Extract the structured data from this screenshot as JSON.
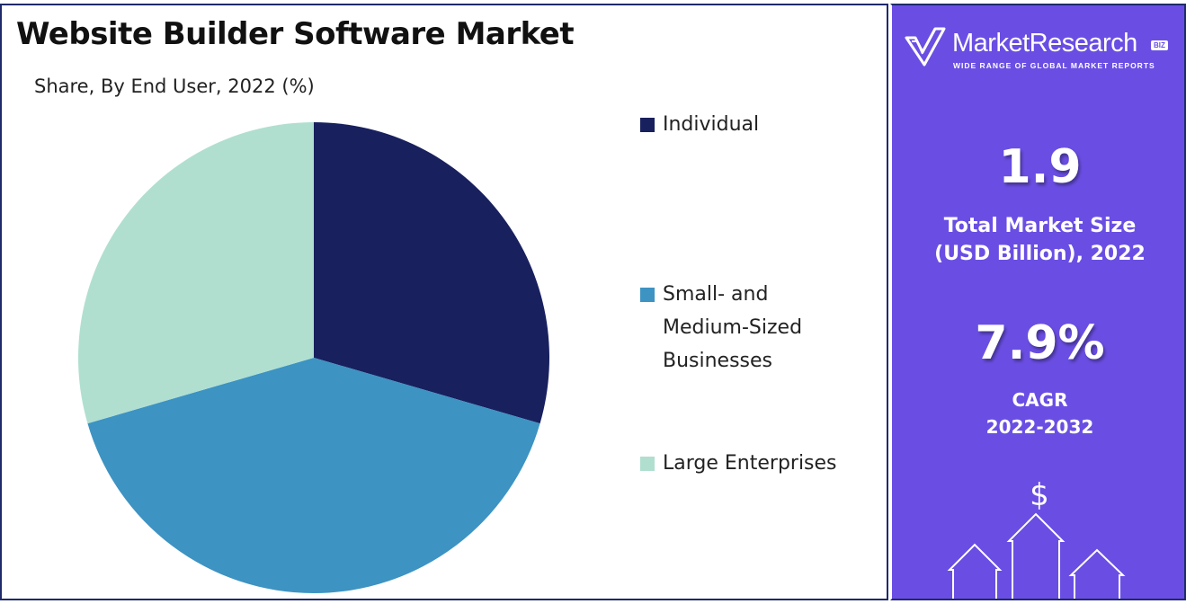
{
  "title": "Website Builder Software Market",
  "subtitle": "Share, By End User, 2022 (%)",
  "chart_data": {
    "type": "pie",
    "title": "Website Builder Software Market",
    "subtitle": "Share, By End User, 2022 (%)",
    "categories": [
      "Individual",
      "Small- and Medium-Sized Businesses",
      "Large Enterprises"
    ],
    "values": [
      29.5,
      41.0,
      29.5
    ],
    "colors": [
      "#18205e",
      "#3d93c2",
      "#b0dfd0"
    ],
    "legend_position": "right"
  },
  "legend": [
    {
      "label_lines": [
        "Individual"
      ],
      "color": "#18205e"
    },
    {
      "label_lines": [
        "Small- and",
        "Medium-Sized",
        "Businesses"
      ],
      "color": "#3d93c2"
    },
    {
      "label_lines": [
        "Large Enterprises"
      ],
      "color": "#b0dfd0"
    }
  ],
  "brand": {
    "name": "MarketResearch",
    "badge": "BIZ",
    "tagline": "WIDE RANGE OF GLOBAL MARKET REPORTS"
  },
  "stats": {
    "market_size_value": "1.9",
    "market_size_label_1": "Total Market Size",
    "market_size_label_2": "(USD Billion), 2022",
    "cagr_value": "7.9%",
    "cagr_label_1": "CAGR",
    "cagr_label_2": "2022-2032",
    "currency_symbol": "$"
  },
  "colors": {
    "panel_accent": "#6a4ee3",
    "border": "#1f2a6b"
  }
}
